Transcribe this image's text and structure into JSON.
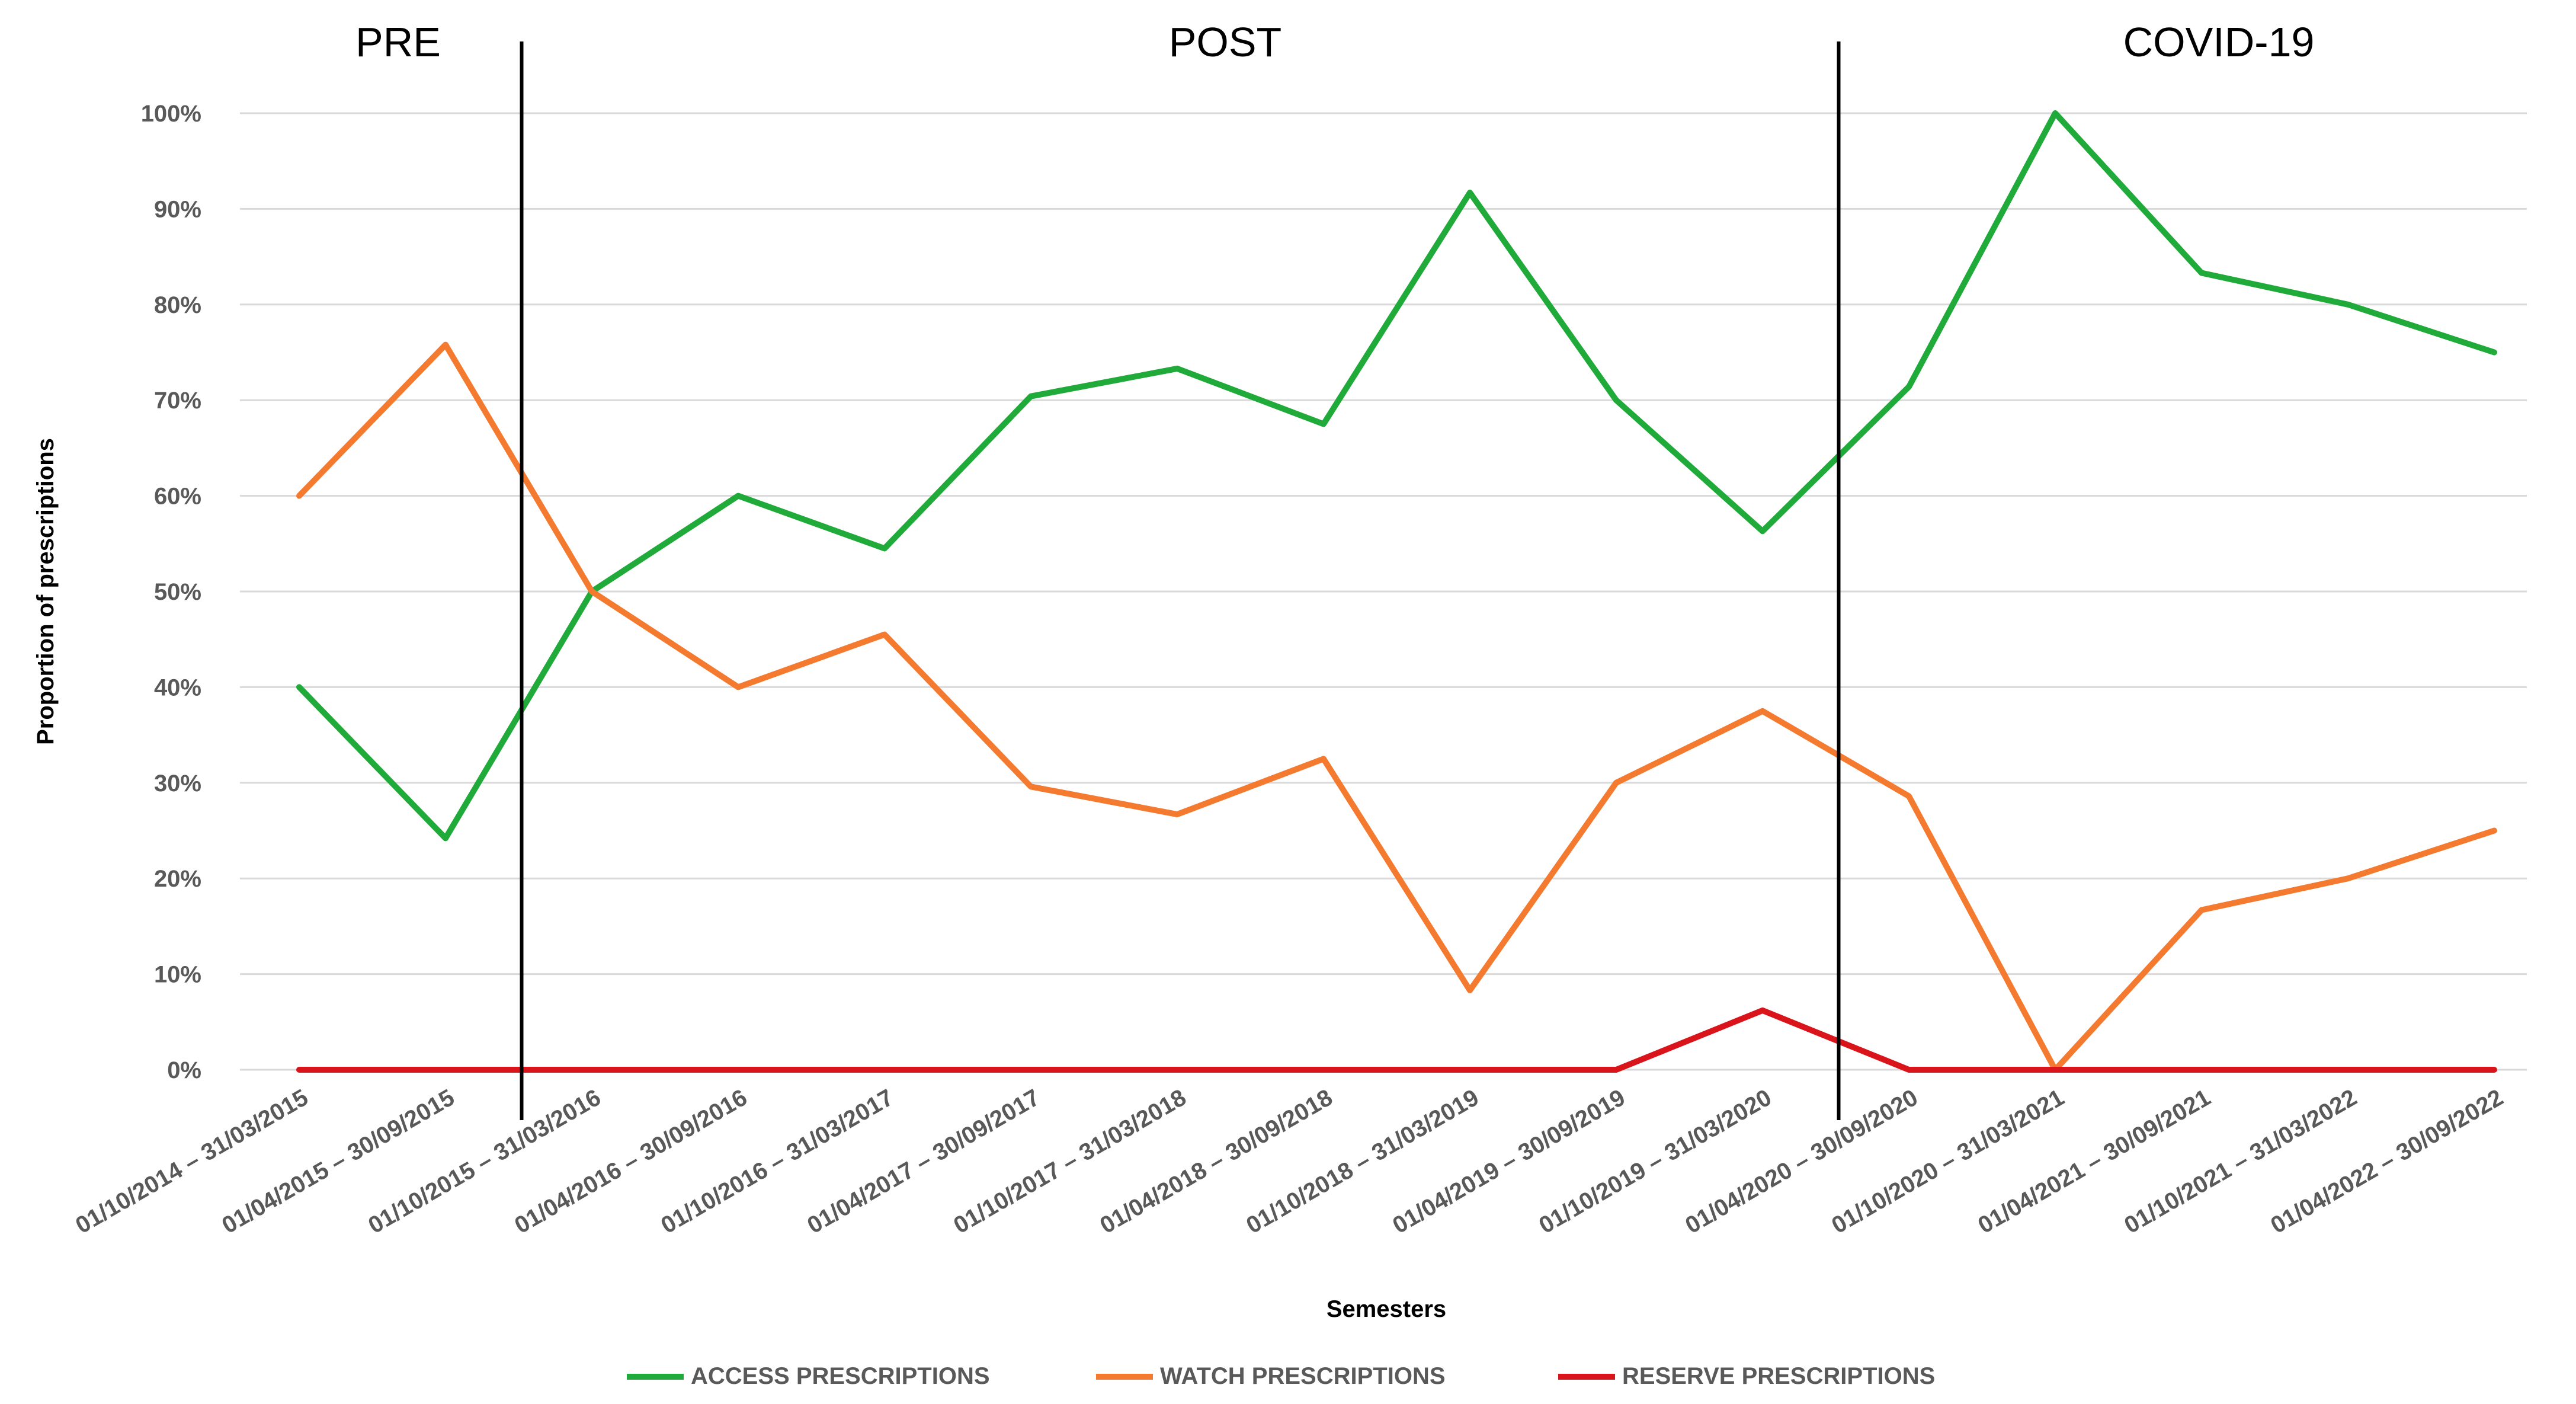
{
  "chart_data": {
    "type": "line",
    "xlabel": "Semesters",
    "ylabel": "Proportion of prescriptions",
    "ylim": [
      0,
      100
    ],
    "ytick_suffix": "%",
    "yticks": [
      "0%",
      "10%",
      "20%",
      "30%",
      "40%",
      "50%",
      "60%",
      "70%",
      "80%",
      "90%",
      "100%"
    ],
    "grid": "horizontal",
    "legend_position": "bottom",
    "categories": [
      "01/10/2014 – 31/03/2015",
      "01/04/2015 – 30/09/2015",
      "01/10/2015 – 31/03/2016",
      "01/04/2016 – 30/09/2016",
      "01/10/2016 – 31/03/2017",
      "01/04/2017 – 30/09/2017",
      "01/10/2017 – 31/03/2018",
      "01/04/2018 – 30/09/2018",
      "01/10/2018 – 31/03/2019",
      "01/04/2019 – 30/09/2019",
      "01/10/2019 – 31/03/2020",
      "01/04/2020 – 30/09/2020",
      "01/10/2020 – 31/03/2021",
      "01/04/2021 – 30/09/2021",
      "01/10/2021 – 31/03/2022",
      "01/04/2022 – 30/09/2022"
    ],
    "series": [
      {
        "name": "ACCESS PRESCRIPTIONS",
        "color": "#1faa3a",
        "values": [
          40,
          24.2,
          50,
          60,
          54.5,
          70.4,
          73.3,
          67.5,
          91.7,
          70,
          56.3,
          71.4,
          100,
          83.3,
          80,
          75
        ]
      },
      {
        "name": "WATCH PRESCRIPTIONS",
        "color": "#f47a30",
        "values": [
          60,
          75.8,
          50,
          40,
          45.5,
          29.6,
          26.7,
          32.5,
          8.3,
          30,
          37.5,
          28.6,
          0,
          16.7,
          20,
          25
        ]
      },
      {
        "name": "RESERVE PRESCRIPTIONS",
        "color": "#d9141a",
        "values": [
          0,
          0,
          0,
          0,
          0,
          0,
          0,
          0,
          0,
          0,
          6.2,
          0,
          0,
          0,
          0,
          0
        ]
      }
    ],
    "period_dividers_after": [
      1,
      10
    ],
    "periods": [
      {
        "label": "PRE",
        "from": 0,
        "to": 1
      },
      {
        "label": "POST",
        "from": 2,
        "to": 10
      },
      {
        "label": "COVID-19",
        "from": 11,
        "to": 15
      }
    ]
  }
}
